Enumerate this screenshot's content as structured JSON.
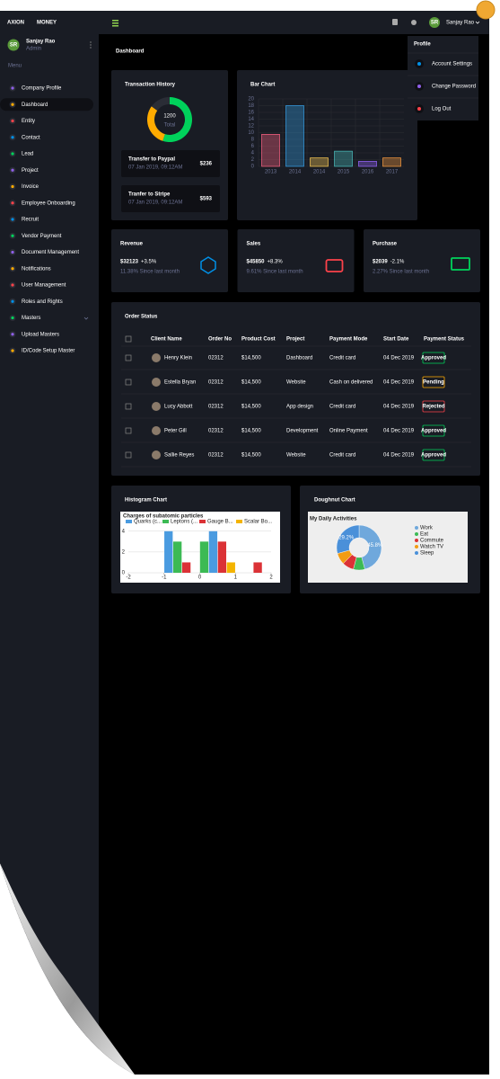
{
  "topbar": {
    "brand_a": "AXION",
    "brand_b": "MONEY",
    "user_initials": "SR",
    "user_name": "Sanjay Rao"
  },
  "sidebar": {
    "user_initials": "SR",
    "user_name": "Sanjay Rao",
    "user_role": "Admin",
    "menu_title": "Menu",
    "items": [
      "Company Profile",
      "Dashboard",
      "Entity",
      "Contact",
      "Lead",
      "Project",
      "Invoice",
      "Employee Onboarding",
      "Recruit",
      "Vendor Payment",
      "Document Management",
      "Notifications",
      "User Management",
      "Roles and Rights",
      "Masters",
      "Upload Masters",
      "ID/Code Setup Master"
    ],
    "active": 1
  },
  "page_title": "Dashboard",
  "profile_menu": {
    "title": "Profile",
    "items": [
      "Account Settings",
      "Change Password",
      "Log Out"
    ]
  },
  "transaction_history": {
    "total": "1200",
    "total_label": "Total",
    "transfers": [
      {
        "title": "Transfer to Paypal",
        "date": "07 Jan 2019, 09:12AM",
        "amount": "$236"
      },
      {
        "title": "Tranfer to Stripe",
        "date": "07 Jan 2019, 09:12AM",
        "amount": "$593"
      }
    ]
  },
  "stats": [
    {
      "title": "Revenue",
      "value": "$32123",
      "change": "+3.5%",
      "change_color": "#00d25b",
      "note": "11.38% Since last month",
      "icon_color": "#0090e7"
    },
    {
      "title": "Sales",
      "value": "$45850",
      "change": "+8.3%",
      "change_color": "#00d25b",
      "note": "9.61% Since last month",
      "icon_color": "#fc424a"
    },
    {
      "title": "Purchase",
      "value": "$2039",
      "change": "-2.1%",
      "change_color": "#fc424a",
      "note": "2.27% Since last month",
      "icon_color": "#00d25b"
    }
  ],
  "order_status": {
    "title": "Order Status",
    "columns": [
      "Client Name",
      "Order No",
      "Product Cost",
      "Project",
      "Payment Mode",
      "Start Date",
      "Payment Status"
    ],
    "rows": [
      {
        "client": "Henry Klein",
        "order_no": "02312",
        "cost": "$14,500",
        "project": "Dashboard",
        "mode": "Credit card",
        "date": "04 Dec 2019",
        "status": "Approved",
        "status_color": "#00d25b"
      },
      {
        "client": "Estella Bryan",
        "order_no": "02312",
        "cost": "$14,500",
        "project": "Website",
        "mode": "Cash on delivered",
        "date": "04 Dec 2019",
        "status": "Pending",
        "status_color": "#ffab00"
      },
      {
        "client": "Lucy Abbott",
        "order_no": "02312",
        "cost": "$14,500",
        "project": "App design",
        "mode": "Credit card",
        "date": "04 Dec 2019",
        "status": "Rejected",
        "status_color": "#fc424a"
      },
      {
        "client": "Peter Gill",
        "order_no": "02312",
        "cost": "$14,500",
        "project": "Development",
        "mode": "Online Payment",
        "date": "04 Dec 2019",
        "status": "Approved",
        "status_color": "#00d25b"
      },
      {
        "client": "Sallie Reyes",
        "order_no": "02312",
        "cost": "$14,500",
        "project": "Website",
        "mode": "Credit card",
        "date": "04 Dec 2019",
        "status": "Approved",
        "status_color": "#00d25b"
      }
    ]
  },
  "chart_data": [
    {
      "type": "donut",
      "title": "Transaction History",
      "values": [
        55,
        30,
        15
      ],
      "colors": [
        "#00d25b",
        "#ffab00",
        "#2a2d36"
      ]
    },
    {
      "type": "bar",
      "title": "Bar Chart",
      "categories": [
        "2013",
        "2014",
        "2014",
        "2015",
        "2016",
        "2017"
      ],
      "values": [
        9.5,
        18,
        2.5,
        4.5,
        1.5,
        2.5
      ],
      "colors": [
        "#ff6384",
        "#36a2eb",
        "#ffce56",
        "#4bc0c0",
        "#9966ff",
        "#ff9f40"
      ],
      "ylim": [
        0,
        20
      ],
      "yticks": [
        0,
        2,
        4,
        6,
        8,
        10,
        12,
        14,
        16,
        18,
        20
      ],
      "grid": true
    },
    {
      "type": "histogram",
      "title": "Histogram Chart",
      "subtitle": "Charges of subatomic particles",
      "bins": [
        -2,
        -1.75,
        -1.5,
        -1.25,
        -1,
        -0.75,
        -0.5,
        -0.25,
        0,
        0.25,
        0.5,
        0.75,
        1,
        1.25,
        1.5,
        1.75,
        2
      ],
      "series": [
        {
          "name": "Quarks (c...",
          "color": "#4a9be0",
          "values": [
            0,
            0,
            0,
            0,
            4,
            0,
            0,
            0,
            0,
            4,
            0,
            0,
            0,
            0,
            0,
            0
          ]
        },
        {
          "name": "Leptons (...",
          "color": "#3cba54",
          "values": [
            0,
            0,
            0,
            0,
            0,
            3,
            0,
            0,
            3,
            0,
            0,
            0,
            0,
            0,
            0,
            0
          ]
        },
        {
          "name": "Gauge B...",
          "color": "#db3236",
          "values": [
            0,
            0,
            0,
            0,
            0,
            0,
            1,
            0,
            0,
            0,
            3,
            0,
            0,
            0,
            1,
            0
          ]
        },
        {
          "name": "Scalar Bo...",
          "color": "#f4b400",
          "values": [
            0,
            0,
            0,
            0,
            0,
            0,
            0,
            0,
            0,
            0,
            0,
            1,
            0,
            0,
            0,
            0
          ]
        }
      ],
      "xlim": [
        -2,
        2
      ],
      "xticks": [
        -2,
        -1,
        0,
        1,
        2
      ],
      "ylim": [
        0,
        4.5
      ],
      "yticks": [
        0,
        2,
        4
      ]
    },
    {
      "type": "doughnut",
      "title": "Doughnut Chart",
      "subtitle": "My Daily Activities",
      "categories": [
        "Work",
        "Eat",
        "Commute",
        "Watch TV",
        "Sleep"
      ],
      "values": [
        45.8,
        8.3,
        8.3,
        8.3,
        29.2
      ],
      "value_labels": [
        "45.8%",
        null,
        null,
        null,
        "29.2%"
      ],
      "colors": [
        "#6fa8dc",
        "#3cba54",
        "#db3236",
        "#f39c12",
        "#4a90d9"
      ]
    }
  ]
}
